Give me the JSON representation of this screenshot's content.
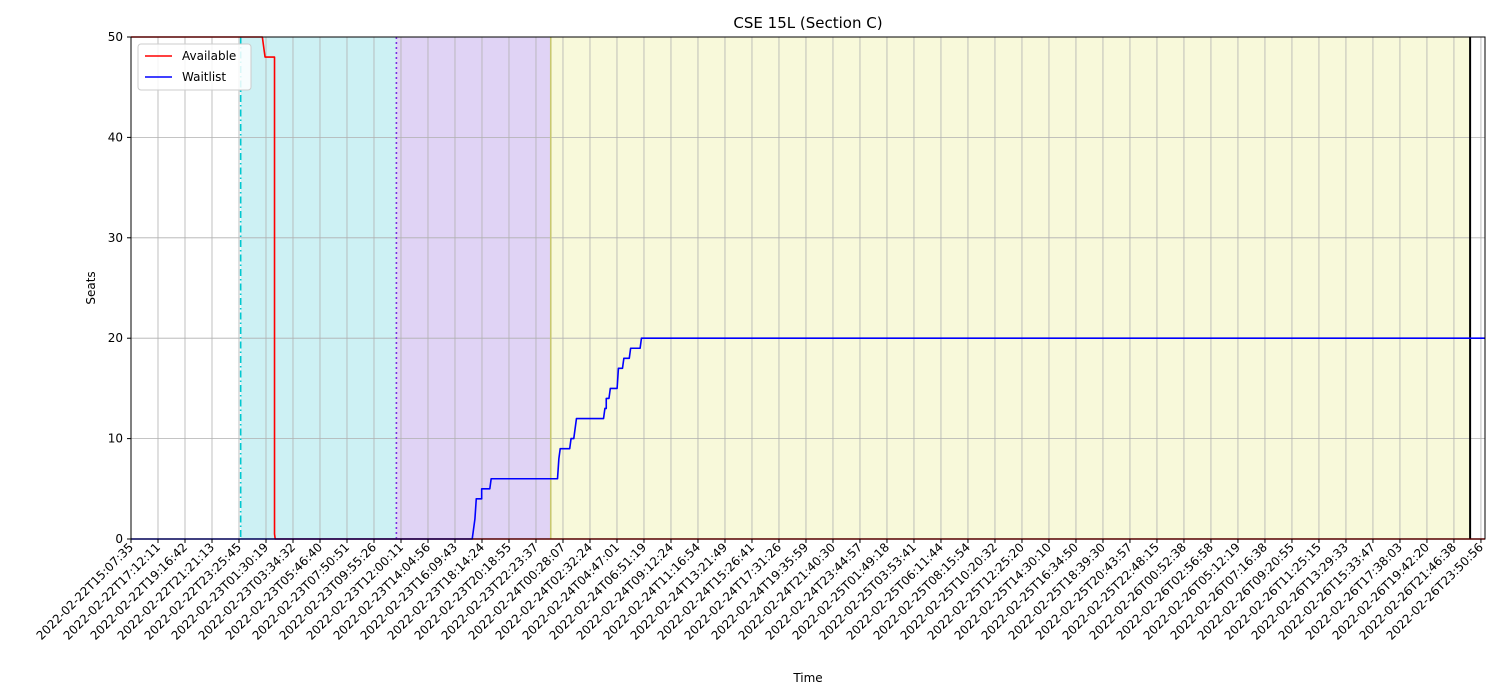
{
  "chart_data": {
    "type": "line",
    "title": "CSE 15L (Section C)",
    "xlabel": "Time",
    "ylabel": "Seats",
    "ylim": [
      0,
      50
    ],
    "yticks": [
      0,
      10,
      20,
      30,
      40,
      50
    ],
    "grid": true,
    "legend_position": "top-left",
    "xlim": [
      0,
      100
    ],
    "x_tick_labels": [
      "2022-02-22T15:07:35",
      "2022-02-22T17:12:11",
      "2022-02-22T19:16:42",
      "2022-02-22T21:21:13",
      "2022-02-22T23:25:45",
      "2022-02-23T01:30:19",
      "2022-02-23T03:34:32",
      "2022-02-23T05:46:40",
      "2022-02-23T07:50:51",
      "2022-02-23T09:55:26",
      "2022-02-23T12:00:11",
      "2022-02-23T14:04:56",
      "2022-02-23T16:09:43",
      "2022-02-23T18:14:24",
      "2022-02-23T20:18:55",
      "2022-02-23T22:23:37",
      "2022-02-24T00:28:07",
      "2022-02-24T02:32:24",
      "2022-02-24T04:47:01",
      "2022-02-24T06:51:19",
      "2022-02-24T09:12:24",
      "2022-02-24T11:16:54",
      "2022-02-24T13:21:49",
      "2022-02-24T15:26:41",
      "2022-02-24T17:31:26",
      "2022-02-24T19:35:59",
      "2022-02-24T21:40:30",
      "2022-02-24T23:44:57",
      "2022-02-25T01:49:18",
      "2022-02-25T03:53:41",
      "2022-02-25T06:11:44",
      "2022-02-25T08:15:54",
      "2022-02-25T10:20:32",
      "2022-02-25T12:25:20",
      "2022-02-25T14:30:10",
      "2022-02-25T16:34:50",
      "2022-02-25T18:39:30",
      "2022-02-25T20:43:57",
      "2022-02-25T22:48:15",
      "2022-02-26T00:52:38",
      "2022-02-26T02:56:58",
      "2022-02-26T05:12:19",
      "2022-02-26T07:16:38",
      "2022-02-26T09:20:55",
      "2022-02-26T11:25:15",
      "2022-02-26T13:29:33",
      "2022-02-26T15:33:47",
      "2022-02-26T17:38:03",
      "2022-02-26T19:42:20",
      "2022-02-26T21:46:38",
      "2022-02-26T23:50:56"
    ],
    "phases": [
      {
        "x_start": 8.1,
        "x_end": 19.6,
        "color": "#cdf1f4",
        "boundary_color": "#00c8d0",
        "boundary_style": "dash-dot"
      },
      {
        "x_start": 19.6,
        "x_end": 31.0,
        "color": "#e0d3f5",
        "boundary_color": "#7b2fe0",
        "boundary_style": "dotted"
      },
      {
        "x_start": 31.0,
        "x_end": 98.9,
        "color": "#f8f9da",
        "boundary_color": "#c8c870",
        "boundary_style": "solid"
      }
    ],
    "end_marker_x": 98.9,
    "series": [
      {
        "name": "Available",
        "color": "#ff0000",
        "points": [
          [
            0,
            50
          ],
          [
            9.7,
            50
          ],
          [
            9.9,
            48
          ],
          [
            10.6,
            48
          ],
          [
            10.6,
            0.5
          ],
          [
            10.65,
            0
          ],
          [
            100,
            0
          ]
        ]
      },
      {
        "name": "Waitlist",
        "color": "#0000ff",
        "points": [
          [
            0,
            0
          ],
          [
            25.2,
            0
          ],
          [
            25.4,
            2
          ],
          [
            25.5,
            4
          ],
          [
            25.9,
            4
          ],
          [
            25.9,
            5
          ],
          [
            26.5,
            5
          ],
          [
            26.6,
            6
          ],
          [
            31.5,
            6
          ],
          [
            31.6,
            8
          ],
          [
            31.7,
            9
          ],
          [
            32.4,
            9
          ],
          [
            32.5,
            10
          ],
          [
            32.7,
            10
          ],
          [
            32.9,
            12
          ],
          [
            34.9,
            12
          ],
          [
            35.0,
            13
          ],
          [
            35.1,
            13
          ],
          [
            35.1,
            14
          ],
          [
            35.3,
            14
          ],
          [
            35.4,
            15
          ],
          [
            35.9,
            15
          ],
          [
            36.0,
            17
          ],
          [
            36.3,
            17
          ],
          [
            36.4,
            18
          ],
          [
            36.8,
            18
          ],
          [
            36.9,
            19
          ],
          [
            37.6,
            19
          ],
          [
            37.7,
            20
          ],
          [
            100,
            20
          ]
        ]
      }
    ]
  }
}
